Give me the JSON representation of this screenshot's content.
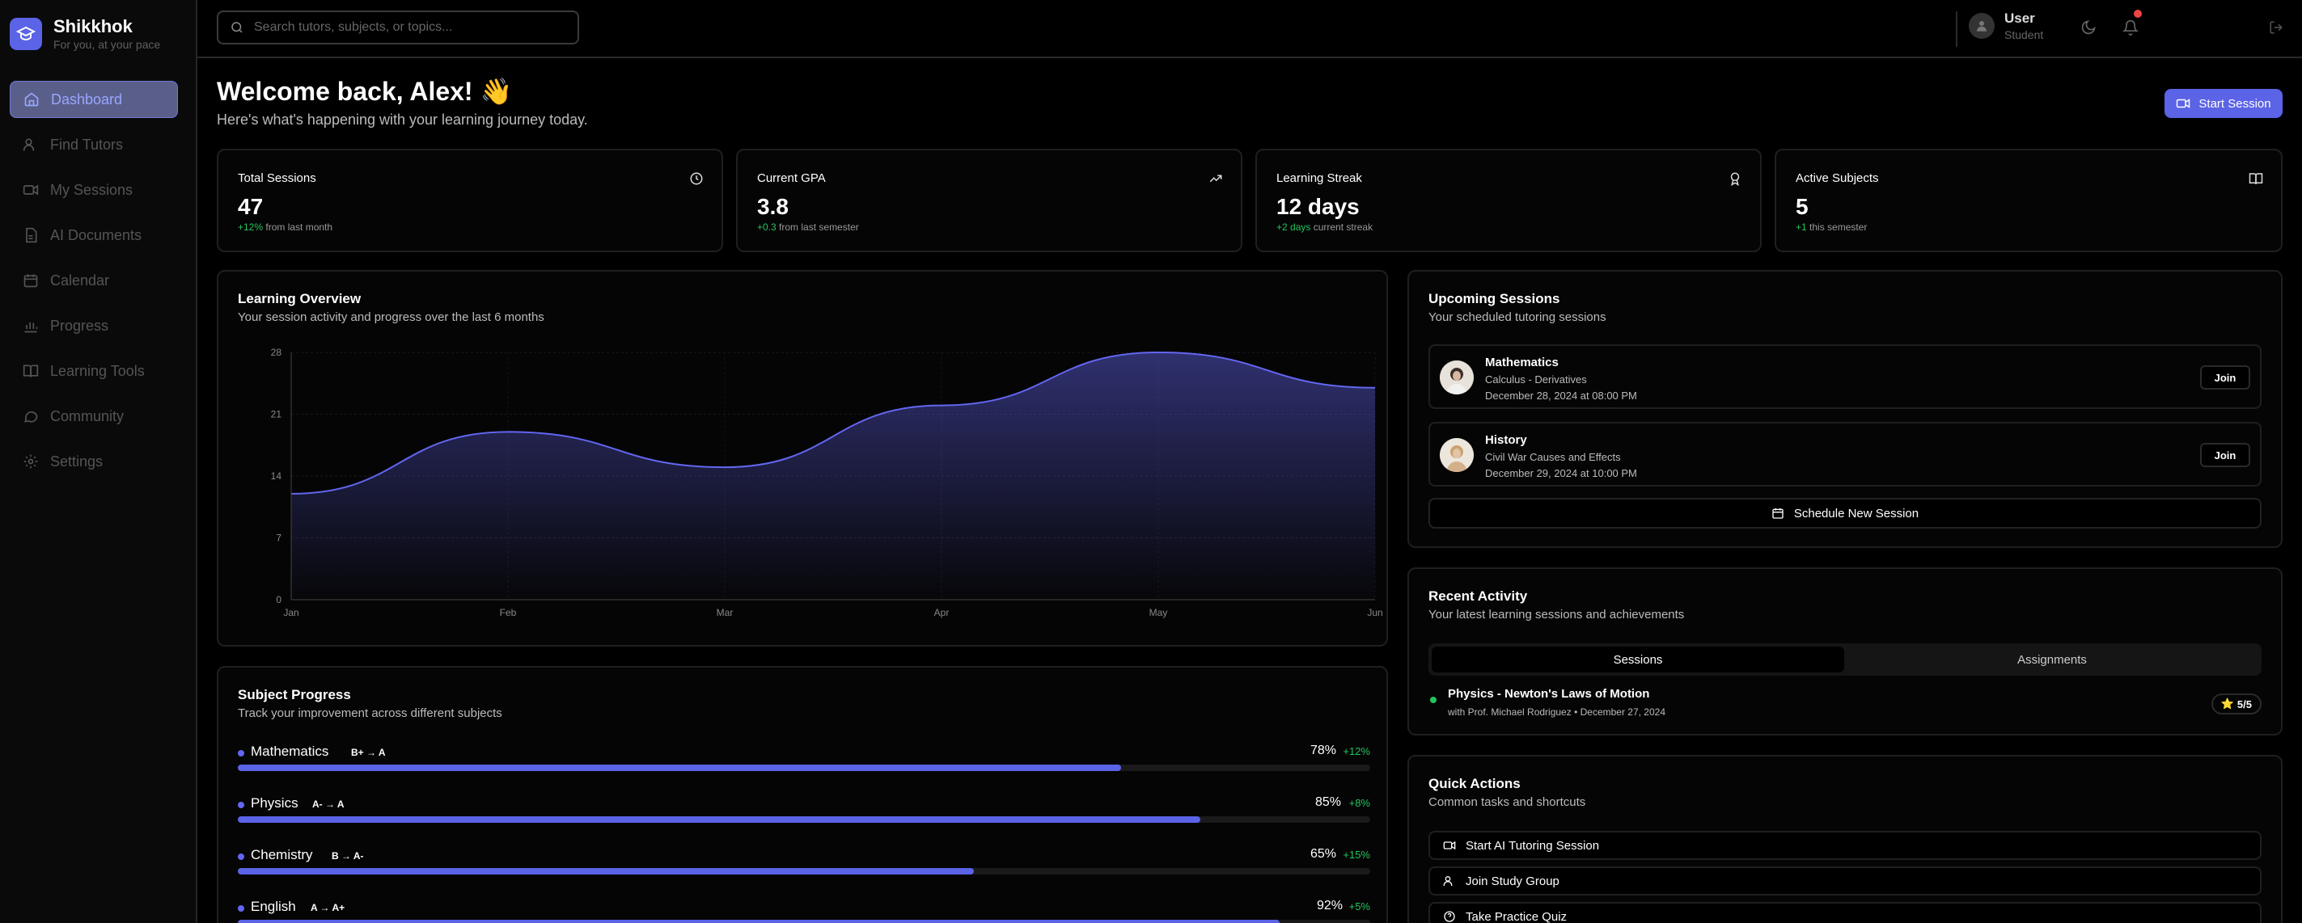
{
  "brand": {
    "name": "Shikkhok",
    "tagline": "For you, at your pace"
  },
  "sidebar": {
    "items": [
      {
        "label": "Dashboard",
        "icon": "home-icon",
        "active": true
      },
      {
        "label": "Find Tutors",
        "icon": "users-icon"
      },
      {
        "label": "My Sessions",
        "icon": "video-icon"
      },
      {
        "label": "AI Documents",
        "icon": "document-icon"
      },
      {
        "label": "Calendar",
        "icon": "calendar-icon"
      },
      {
        "label": "Progress",
        "icon": "bar-chart-icon"
      },
      {
        "label": "Learning Tools",
        "icon": "book-icon"
      },
      {
        "label": "Community",
        "icon": "chat-icon"
      },
      {
        "label": "Settings",
        "icon": "gear-icon"
      }
    ]
  },
  "header": {
    "search_placeholder": "Search tutors, subjects, or topics...",
    "user": {
      "name": "User",
      "role": "Student"
    }
  },
  "welcome": {
    "title": "Welcome back, Alex! 👋",
    "subtitle": "Here's what's happening with your learning journey today.",
    "start_button": "Start Session"
  },
  "stats": [
    {
      "title": "Total Sessions",
      "value": "47",
      "delta": "+12%",
      "delta_text": "from last month",
      "icon": "clock-icon"
    },
    {
      "title": "Current GPA",
      "value": "3.8",
      "delta": "+0.3",
      "delta_text": "from last semester",
      "icon": "trending-up-icon"
    },
    {
      "title": "Learning Streak",
      "value": "12 days",
      "delta": "+2 days",
      "delta_text": "current streak",
      "icon": "award-icon"
    },
    {
      "title": "Active Subjects",
      "value": "5",
      "delta": "+1",
      "delta_text": "this semester",
      "icon": "book-open-icon"
    }
  ],
  "overview": {
    "title": "Learning Overview",
    "subtitle": "Your session activity and progress over the last 6 months"
  },
  "chart_data": {
    "type": "area",
    "x": [
      "Jan",
      "Feb",
      "Mar",
      "Apr",
      "May",
      "Jun"
    ],
    "series": [
      {
        "values": [
          12,
          19,
          15,
          22,
          28,
          24
        ]
      }
    ],
    "yticks": [
      0,
      7,
      14,
      21,
      28
    ],
    "ylim": [
      0,
      28
    ],
    "grid": true,
    "color": "#6366f1"
  },
  "upcoming": {
    "title": "Upcoming Sessions",
    "subtitle": "Your scheduled tutoring sessions",
    "sessions": [
      {
        "subject": "Mathematics",
        "topic": "Calculus - Derivatives",
        "time": "December 28, 2024 at 08:00 PM",
        "join": "Join"
      },
      {
        "subject": "History",
        "topic": "Civil War Causes and Effects",
        "time": "December 29, 2024 at 10:00 PM",
        "join": "Join"
      }
    ],
    "schedule_button": "Schedule New Session"
  },
  "activity": {
    "title": "Recent Activity",
    "subtitle": "Your latest learning sessions and achievements",
    "tabs": [
      "Sessions",
      "Assignments"
    ],
    "items": [
      {
        "title": "Physics - Newton's Laws of Motion",
        "meta": "with Prof. Michael Rodriguez • December 27, 2024",
        "rating": "5/5"
      }
    ]
  },
  "quick_actions": {
    "title": "Quick Actions",
    "subtitle": "Common tasks and shortcuts",
    "items": [
      {
        "label": "Start AI Tutoring Session",
        "icon": "video-icon"
      },
      {
        "label": "Join Study Group",
        "icon": "users-icon"
      },
      {
        "label": "Take Practice Quiz",
        "icon": "help-circle-icon"
      }
    ]
  },
  "subject_progress": {
    "title": "Subject Progress",
    "subtitle": "Track your improvement across different subjects",
    "subjects": [
      {
        "name": "Mathematics",
        "grade": "B+ → A",
        "percent": "78%",
        "change": "+12%",
        "progress": 0.78
      },
      {
        "name": "Physics",
        "grade": "A- → A",
        "percent": "85%",
        "change": "+8%",
        "progress": 0.85
      },
      {
        "name": "Chemistry",
        "grade": "B → A-",
        "percent": "65%",
        "change": "+15%",
        "progress": 0.65
      },
      {
        "name": "English",
        "grade": "A → A+",
        "percent": "92%",
        "change": "+5%",
        "progress": 0.92
      }
    ]
  }
}
